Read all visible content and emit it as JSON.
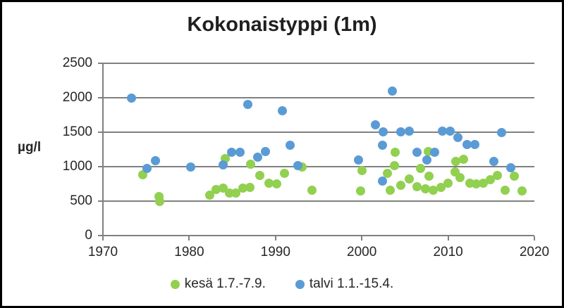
{
  "title": "Kokonaistyppi (1m)",
  "colors": {
    "summer": "#92d050",
    "winter": "#5b9bd5",
    "grid": "#808080",
    "text": "#262626",
    "frame_border": "#000000"
  },
  "chart_data": {
    "type": "scatter",
    "title": "Kokonaistyppi (1m)",
    "xlabel": "",
    "ylabel": "µg/l",
    "xlim": [
      1970,
      2020
    ],
    "ylim": [
      0,
      2500
    ],
    "x_ticks": [
      1970,
      1980,
      1990,
      2000,
      2010,
      2020
    ],
    "y_ticks": [
      0,
      500,
      1000,
      1500,
      2000,
      2500
    ],
    "grid": "horizontal",
    "legend_position": "bottom",
    "series": [
      {
        "name": "kesä 1.7.-7.9.",
        "color": "#92d050",
        "points": [
          {
            "x": 1974.6,
            "y": 880
          },
          {
            "x": 1976.5,
            "y": 570
          },
          {
            "x": 1976.6,
            "y": 490
          },
          {
            "x": 1982.4,
            "y": 590
          },
          {
            "x": 1983.1,
            "y": 670
          },
          {
            "x": 1983.9,
            "y": 690
          },
          {
            "x": 1984.2,
            "y": 1120
          },
          {
            "x": 1984.7,
            "y": 620
          },
          {
            "x": 1985.4,
            "y": 620
          },
          {
            "x": 1986.2,
            "y": 690
          },
          {
            "x": 1987.0,
            "y": 700
          },
          {
            "x": 1987.1,
            "y": 1040
          },
          {
            "x": 1988.2,
            "y": 870
          },
          {
            "x": 1989.2,
            "y": 760
          },
          {
            "x": 1990.1,
            "y": 750
          },
          {
            "x": 1991.0,
            "y": 900
          },
          {
            "x": 1993.1,
            "y": 1000
          },
          {
            "x": 1994.2,
            "y": 660
          },
          {
            "x": 1999.9,
            "y": 650
          },
          {
            "x": 2000.0,
            "y": 940
          },
          {
            "x": 2003.0,
            "y": 900
          },
          {
            "x": 2003.3,
            "y": 660
          },
          {
            "x": 2003.8,
            "y": 1020
          },
          {
            "x": 2003.9,
            "y": 1210
          },
          {
            "x": 2004.5,
            "y": 730
          },
          {
            "x": 2005.5,
            "y": 820
          },
          {
            "x": 2006.4,
            "y": 710
          },
          {
            "x": 2006.8,
            "y": 970
          },
          {
            "x": 2007.4,
            "y": 680
          },
          {
            "x": 2007.7,
            "y": 1220
          },
          {
            "x": 2007.8,
            "y": 860
          },
          {
            "x": 2008.3,
            "y": 660
          },
          {
            "x": 2009.2,
            "y": 700
          },
          {
            "x": 2010.0,
            "y": 765
          },
          {
            "x": 2010.8,
            "y": 920
          },
          {
            "x": 2010.9,
            "y": 1080
          },
          {
            "x": 2011.4,
            "y": 840
          },
          {
            "x": 2011.8,
            "y": 1110
          },
          {
            "x": 2012.5,
            "y": 765
          },
          {
            "x": 2013.3,
            "y": 755
          },
          {
            "x": 2014.1,
            "y": 765
          },
          {
            "x": 2014.9,
            "y": 810
          },
          {
            "x": 2015.7,
            "y": 870
          },
          {
            "x": 2016.6,
            "y": 660
          },
          {
            "x": 2017.7,
            "y": 860
          },
          {
            "x": 2018.6,
            "y": 650
          }
        ]
      },
      {
        "name": "talvi 1.1.-15.4.",
        "color": "#5b9bd5",
        "points": [
          {
            "x": 1973.3,
            "y": 2000
          },
          {
            "x": 1975.1,
            "y": 970
          },
          {
            "x": 1976.1,
            "y": 1090
          },
          {
            "x": 1980.2,
            "y": 1000
          },
          {
            "x": 1983.9,
            "y": 1030
          },
          {
            "x": 1984.9,
            "y": 1210
          },
          {
            "x": 1985.9,
            "y": 1210
          },
          {
            "x": 1986.8,
            "y": 1900
          },
          {
            "x": 1987.9,
            "y": 1140
          },
          {
            "x": 1988.8,
            "y": 1220
          },
          {
            "x": 1990.8,
            "y": 1810
          },
          {
            "x": 1991.7,
            "y": 1310
          },
          {
            "x": 1992.6,
            "y": 1020
          },
          {
            "x": 1999.6,
            "y": 1100
          },
          {
            "x": 2001.6,
            "y": 1610
          },
          {
            "x": 2002.4,
            "y": 1310
          },
          {
            "x": 2002.4,
            "y": 790
          },
          {
            "x": 2002.5,
            "y": 1510
          },
          {
            "x": 2003.5,
            "y": 2100
          },
          {
            "x": 2004.5,
            "y": 1510
          },
          {
            "x": 2005.5,
            "y": 1520
          },
          {
            "x": 2006.4,
            "y": 1210
          },
          {
            "x": 2007.5,
            "y": 1100
          },
          {
            "x": 2008.4,
            "y": 1210
          },
          {
            "x": 2009.3,
            "y": 1520
          },
          {
            "x": 2010.2,
            "y": 1520
          },
          {
            "x": 2011.1,
            "y": 1420
          },
          {
            "x": 2012.2,
            "y": 1320
          },
          {
            "x": 2013.1,
            "y": 1320
          },
          {
            "x": 2015.3,
            "y": 1080
          },
          {
            "x": 2016.2,
            "y": 1500
          },
          {
            "x": 2017.3,
            "y": 980
          }
        ]
      }
    ]
  }
}
